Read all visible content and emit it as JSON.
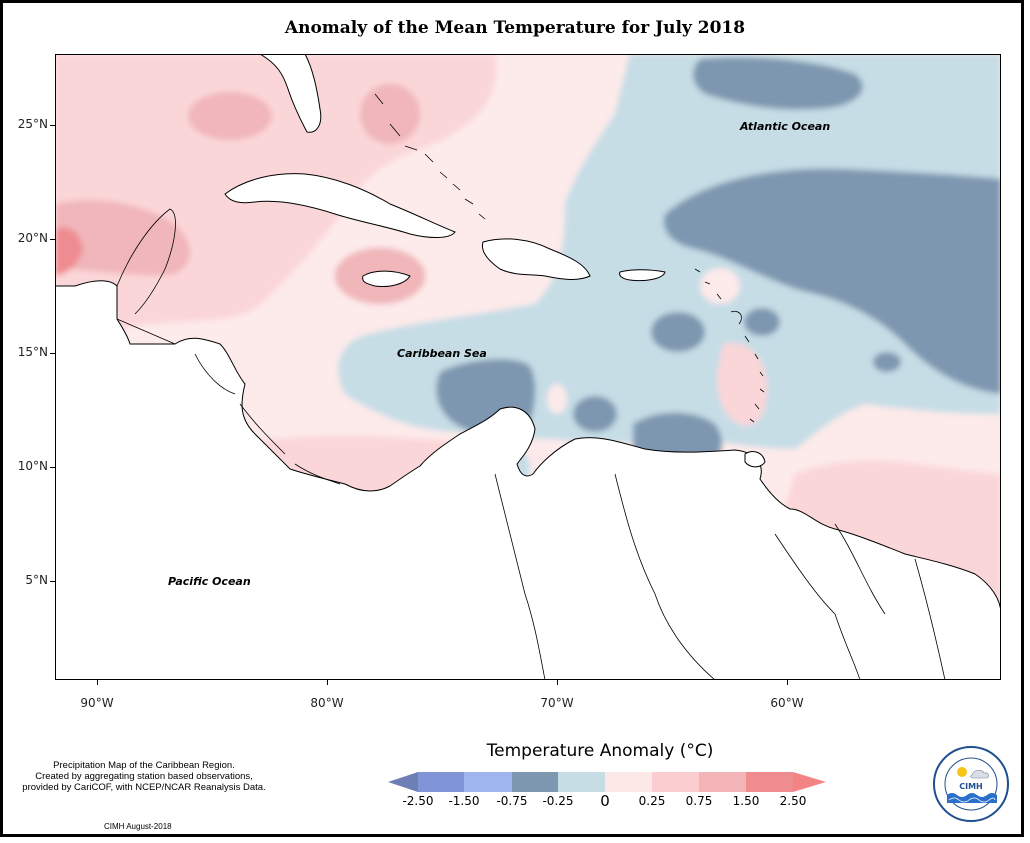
{
  "title": "Anomaly of the Mean Temperature for July 2018",
  "axes": {
    "lat_ticks": [
      "25°N",
      "20°N",
      "15°N",
      "10°N",
      "5°N"
    ],
    "lon_ticks": [
      "90°W",
      "80°W",
      "70°W",
      "60°W"
    ]
  },
  "labels": {
    "atlantic": "Atlantic Ocean",
    "caribbean": "Caribbean Sea",
    "pacific": "Pacific Ocean"
  },
  "legend": {
    "title": "Temperature Anomaly (°C)",
    "bins": [
      "-2.50",
      "-1.50",
      "-0.75",
      "-0.25",
      "0",
      "0.25",
      "0.75",
      "1.50",
      "2.50"
    ],
    "colors": [
      "#6e7fb5",
      "#7f95d8",
      "#9fb5f0",
      "#7e97b0",
      "#c6dde5",
      "#fde8e8",
      "#fbcdd1",
      "#f2b4b7",
      "#ee8c90",
      "#f48484"
    ]
  },
  "note": {
    "line1": "Precipitation Map of the Caribbean Region.",
    "line2": "Created by aggregating station based observations,",
    "line3": "provided by CariCOF, with NCEP/NCAR Reanalysis Data."
  },
  "footer": "CIMH August-2018",
  "logo": {
    "text": "CIMH",
    "ring_top": "Caribbean Institute for",
    "ring_bottom": "Meteorology and Hydrology"
  }
}
